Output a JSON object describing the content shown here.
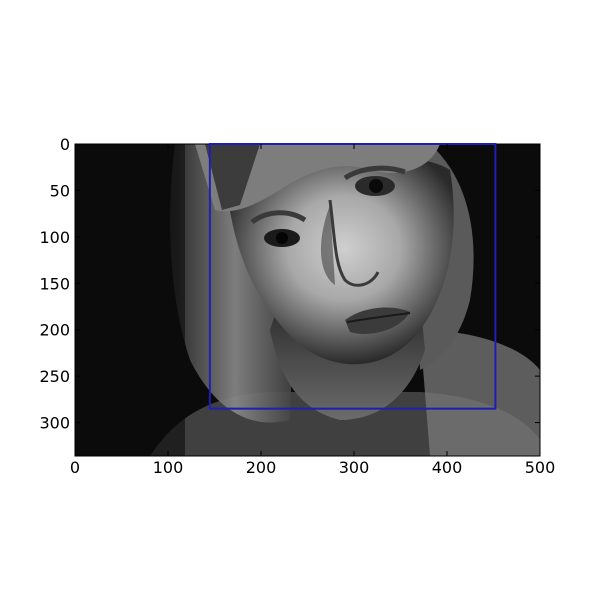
{
  "image": {
    "description_icon": "grayscale-portrait-photo",
    "width_units": 500,
    "height_units": 336
  },
  "axes": {
    "x": {
      "min": 0,
      "max": 500,
      "ticks": [
        0,
        100,
        200,
        300,
        400,
        500
      ],
      "labels": [
        "0",
        "100",
        "200",
        "300",
        "400",
        "500"
      ]
    },
    "y": {
      "min": 0,
      "max": 336,
      "inverted": true,
      "ticks": [
        0,
        50,
        100,
        150,
        200,
        250,
        300
      ],
      "labels": [
        "0",
        "50",
        "100",
        "150",
        "200",
        "250",
        "300"
      ]
    }
  },
  "annotation": {
    "type": "bounding-box",
    "color": "#1f1fb4",
    "x0": 145,
    "y0": -1,
    "x1": 452,
    "y1": 285
  }
}
